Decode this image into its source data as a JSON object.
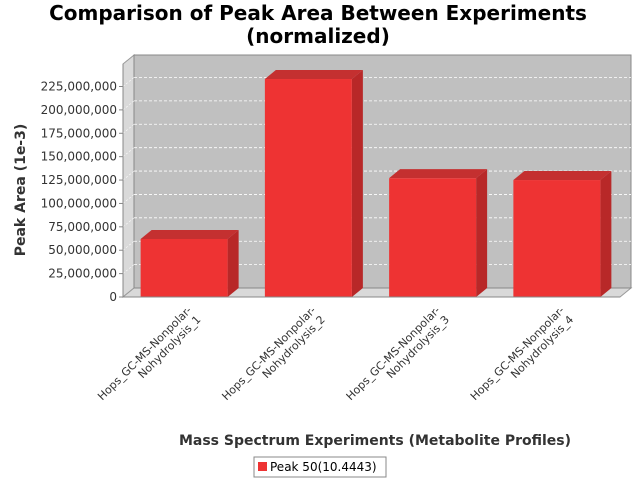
{
  "chart_data": {
    "type": "bar",
    "title_line1": "Comparison of Peak Area Between Experiments",
    "title_line2": "(normalized)",
    "xlabel": "Mass Spectrum Experiments (Metabolite Profiles)",
    "ylabel": "Peak Area (1e-3)",
    "categories": [
      [
        "Hops_GC-MS-Nonpolar-",
        "Nohydrolysis_1"
      ],
      [
        "Hops_GC-MS-Nonpolar-",
        "Nohydrolysis_2"
      ],
      [
        "Hops_GC-MS-Nonpolar-",
        "Nohydrolysis_3"
      ],
      [
        "Hops_GC-MS-Nonpolar-",
        "Nohydrolysis_4"
      ]
    ],
    "series": [
      {
        "name": "Peak 50(10.4443)",
        "values": [
          62000000,
          233000000,
          127000000,
          125000000
        ]
      }
    ],
    "yticks": [
      {
        "value": 0,
        "label": "0"
      },
      {
        "value": 25000000,
        "label": "25,000,000"
      },
      {
        "value": 50000000,
        "label": "50,000,000"
      },
      {
        "value": 75000000,
        "label": "75,000,000"
      },
      {
        "value": 100000000,
        "label": "100,000,000"
      },
      {
        "value": 125000000,
        "label": "125,000,000"
      },
      {
        "value": 150000000,
        "label": "150,000,000"
      },
      {
        "value": 175000000,
        "label": "175,000,000"
      },
      {
        "value": 200000000,
        "label": "200,000,000"
      },
      {
        "value": 225000000,
        "label": "225,000,000"
      }
    ],
    "ylim": [
      0,
      250000000
    ],
    "grid": true,
    "legend_position": "bottom",
    "colors": {
      "bar_front": "#ee3333",
      "bar_side": "#b82828",
      "bar_top": "#c43030",
      "plot_bg": "#c0c0c0",
      "wall": "#d9d9d9",
      "grid": "#ffffff"
    }
  }
}
